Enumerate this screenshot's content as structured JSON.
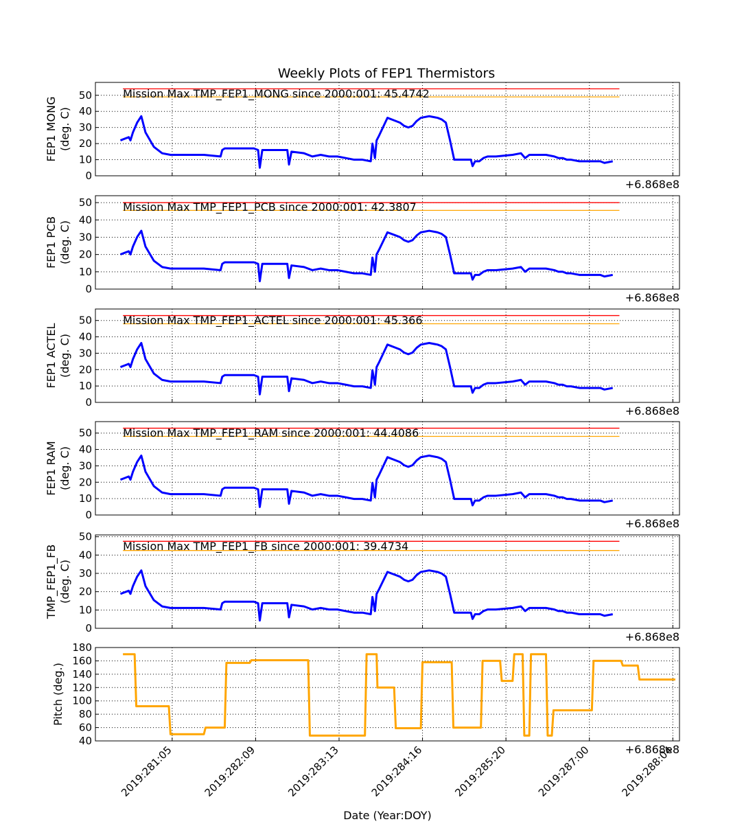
{
  "figure": {
    "title": "Weekly Plots of FEP1 Thermistors"
  },
  "chart_data": [
    {
      "type": "line",
      "ylabel": [
        "FEP1 MONG",
        "(deg. C)"
      ],
      "ylim": [
        0,
        58
      ],
      "yticks": [
        0,
        10,
        20,
        30,
        40,
        50
      ],
      "grid": true,
      "annotation": "Mission Max TMP_FEP1_MONG since 2000:001: 45.4742",
      "offset_text": "+6.868e8",
      "limits": [
        {
          "value": 54,
          "color": "#ff0000"
        },
        {
          "value": 49,
          "color": "#ffa500"
        }
      ],
      "series": [
        {
          "color": "#0000ff",
          "t_start": 0.3,
          "t_end": 6.2,
          "x": [
            0.3,
            0.35,
            0.4,
            0.42,
            0.45,
            0.5,
            0.55,
            0.6,
            0.7,
            0.8,
            0.9,
            1.0,
            1.1,
            1.3,
            1.5,
            1.52,
            1.55,
            1.9,
            1.95,
            1.97,
            2.0,
            2.3,
            2.32,
            2.35,
            2.5,
            2.6,
            2.7,
            2.8,
            2.9,
            3.0,
            3.1,
            3.2,
            3.3,
            3.32,
            3.35,
            3.37,
            3.4,
            3.5,
            3.6,
            3.65,
            3.7,
            3.75,
            3.8,
            3.85,
            3.9,
            4.0,
            4.1,
            4.15,
            4.2,
            4.25,
            4.3,
            4.4,
            4.5,
            4.52,
            4.55,
            4.6,
            4.65,
            4.7,
            4.8,
            5.0,
            5.1,
            5.15,
            5.2,
            5.3,
            5.4,
            5.5,
            5.55,
            5.6,
            5.65,
            5.7,
            5.8,
            5.9,
            6.0,
            6.05,
            6.1,
            6.2
          ],
          "y": [
            22,
            23,
            24,
            22,
            27,
            33,
            37,
            27,
            18,
            14,
            13,
            13,
            13,
            13,
            12,
            16,
            17,
            17,
            16,
            5,
            16,
            16,
            7,
            15,
            14,
            12,
            13,
            12,
            12,
            11,
            10,
            10,
            9,
            20,
            11,
            22,
            25,
            36,
            34,
            33,
            31,
            30,
            31,
            34,
            36,
            37,
            36,
            35,
            33,
            22,
            10,
            10,
            10,
            6,
            9,
            9,
            11,
            12,
            12,
            13,
            14,
            11,
            13,
            13,
            13,
            12,
            11,
            11,
            10,
            10,
            9,
            9,
            9,
            9,
            8,
            9
          ]
        }
      ]
    },
    {
      "type": "line",
      "ylabel": [
        "FEP1 PCB",
        "(deg. C)"
      ],
      "ylim": [
        0,
        54
      ],
      "yticks": [
        0,
        10,
        20,
        30,
        40,
        50
      ],
      "grid": true,
      "annotation": "Mission Max TMP_FEP1_PCB since 2000:001: 42.3807",
      "offset_text": "+6.868e8",
      "limits": [
        {
          "value": 50,
          "color": "#ff0000"
        },
        {
          "value": 45.5,
          "color": "#ffa500"
        }
      ],
      "series": [
        {
          "color": "#0000ff"
        }
      ]
    },
    {
      "type": "line",
      "ylabel": [
        "FEP1 ACTEL",
        "(deg. C)"
      ],
      "ylim": [
        0,
        57
      ],
      "yticks": [
        0,
        10,
        20,
        30,
        40,
        50
      ],
      "grid": true,
      "annotation": "Mission Max TMP_FEP1_ACTEL since 2000:001: 45.366",
      "offset_text": "+6.868e8",
      "limits": [
        {
          "value": 53,
          "color": "#ff0000"
        },
        {
          "value": 48,
          "color": "#ffa500"
        }
      ],
      "series": [
        {
          "color": "#0000ff"
        }
      ]
    },
    {
      "type": "line",
      "ylabel": [
        "FEP1 RAM",
        "(deg. C)"
      ],
      "ylim": [
        0,
        57
      ],
      "yticks": [
        0,
        10,
        20,
        30,
        40,
        50
      ],
      "grid": true,
      "annotation": "Mission Max TMP_FEP1_RAM since 2000:001: 44.4086",
      "offset_text": "+6.868e8",
      "limits": [
        {
          "value": 53,
          "color": "#ff0000"
        },
        {
          "value": 48,
          "color": "#ffa500"
        }
      ],
      "series": [
        {
          "color": "#0000ff"
        }
      ]
    },
    {
      "type": "line",
      "ylabel": [
        "TMP_FEP1_FB",
        "(deg. C)"
      ],
      "ylim": [
        0,
        51
      ],
      "yticks": [
        0,
        10,
        20,
        30,
        40,
        50
      ],
      "grid": true,
      "annotation": "Mission Max TMP_FEP1_FB since 2000:001: 39.4734",
      "offset_text": "+6.868e8",
      "limits": [
        {
          "value": 47.5,
          "color": "#ff0000"
        },
        {
          "value": 42.5,
          "color": "#ffa500"
        }
      ],
      "series": [
        {
          "color": "#0000ff"
        }
      ]
    },
    {
      "type": "line",
      "ylabel": [
        "Pitch (deg.)"
      ],
      "ylim": [
        40,
        180
      ],
      "yticks": [
        40,
        60,
        80,
        100,
        120,
        140,
        160,
        180
      ],
      "grid": true,
      "offset_text": "+6.868e8",
      "xlabel": "Date (Year:DOY)",
      "xticks": [
        "2019:281:05",
        "2019:282:09",
        "2019:283:13",
        "2019:284:16",
        "2019:285:20",
        "2019:287:00",
        "2019:288:04"
      ],
      "series": [
        {
          "color": "#ffa500",
          "x": [
            0.33,
            0.47,
            0.49,
            0.88,
            0.9,
            1.3,
            1.32,
            1.55,
            1.57,
            1.85,
            1.87,
            2.55,
            2.57,
            3.23,
            3.25,
            3.37,
            3.38,
            3.58,
            3.6,
            3.9,
            3.92,
            4.27,
            4.29,
            4.62,
            4.64,
            4.85,
            4.87,
            5.0,
            5.02,
            5.12,
            5.14,
            5.2,
            5.22,
            5.4,
            5.42,
            5.47,
            5.49,
            5.95,
            5.97,
            6.3,
            6.32,
            6.5,
            6.52,
            6.75,
            6.77,
            6.95
          ],
          "y": [
            170,
            170,
            92,
            92,
            50,
            50,
            60,
            60,
            157,
            157,
            161,
            161,
            48,
            48,
            170,
            170,
            120,
            120,
            59,
            59,
            158,
            158,
            60,
            60,
            160,
            160,
            130,
            130,
            170,
            170,
            48,
            48,
            170,
            170,
            48,
            48,
            86,
            86,
            160,
            160,
            153,
            153,
            132,
            132,
            132,
            132
          ]
        }
      ]
    }
  ]
}
